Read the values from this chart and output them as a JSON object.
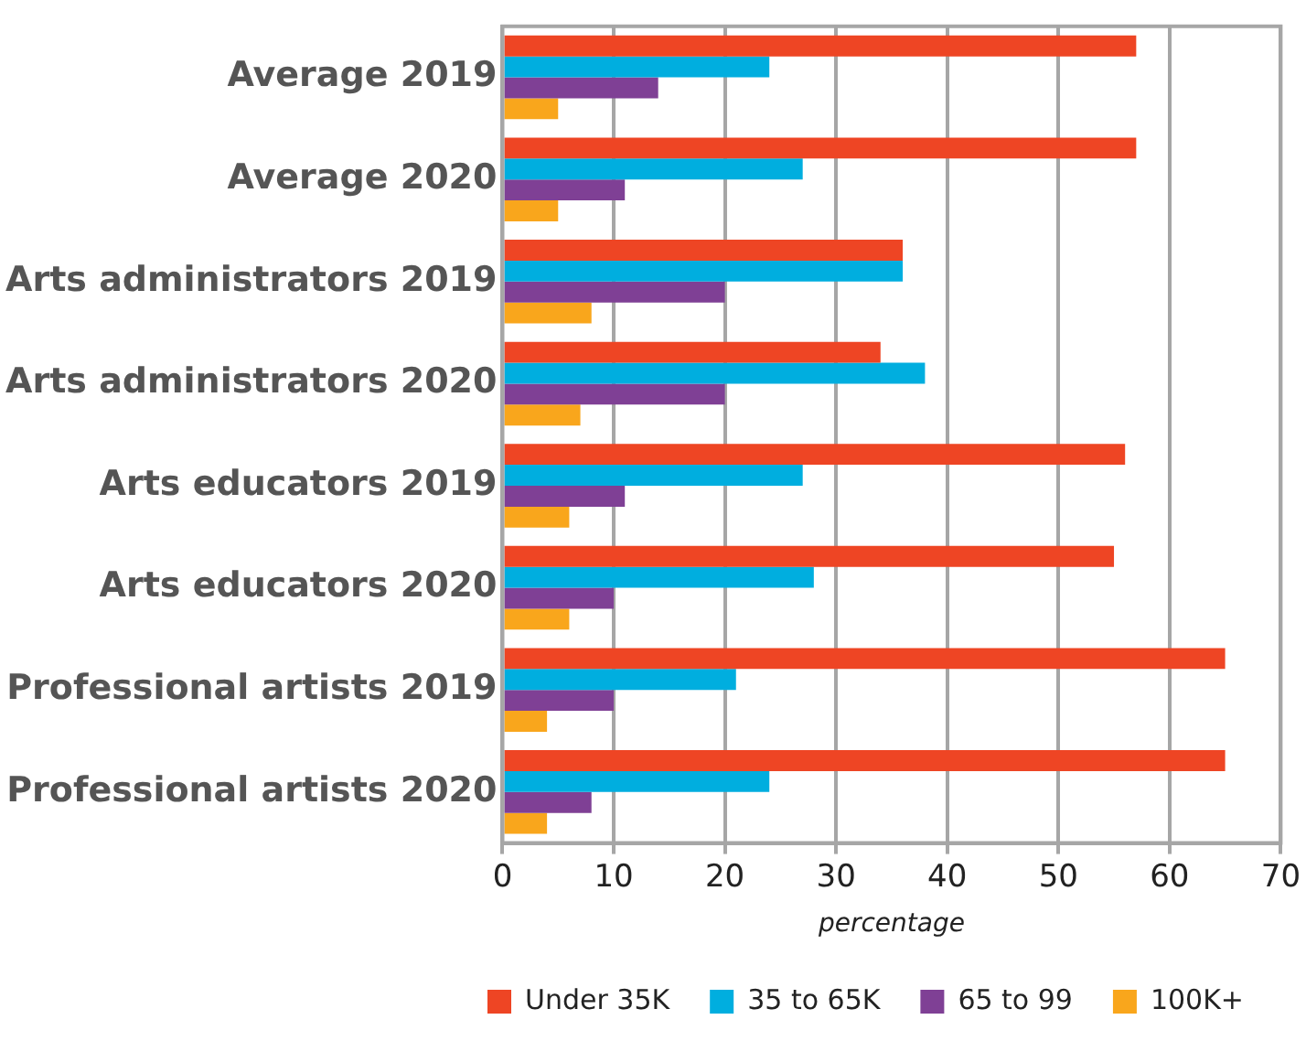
{
  "chart_data": {
    "type": "bar",
    "orientation": "horizontal",
    "xlabel": "percentage",
    "categories": [
      "Average 2019",
      "Average 2020",
      "Arts administrators 2019",
      "Arts administrators 2020",
      "Arts educators 2019",
      "Arts educators 2020",
      "Professional artists 2019",
      "Professional artists 2020"
    ],
    "series": [
      {
        "name": "Under 35K",
        "color": "#ee4524",
        "values": [
          57,
          57,
          36,
          34,
          56,
          55,
          65,
          65
        ]
      },
      {
        "name": "35 to 65K",
        "color": "#00aedf",
        "values": [
          24,
          27,
          36,
          38,
          27,
          28,
          21,
          24
        ]
      },
      {
        "name": "65 to 99",
        "color": "#7f4095",
        "values": [
          14,
          11,
          20,
          20,
          11,
          10,
          10,
          8
        ]
      },
      {
        "name": "100K+",
        "color": "#f9a61c",
        "values": [
          5,
          5,
          8,
          7,
          6,
          6,
          4,
          4
        ]
      }
    ],
    "xlim": [
      0,
      70
    ],
    "xticks": [
      0,
      10,
      20,
      30,
      40,
      50,
      60,
      70
    ],
    "grid": "x",
    "legend": "bottom"
  }
}
